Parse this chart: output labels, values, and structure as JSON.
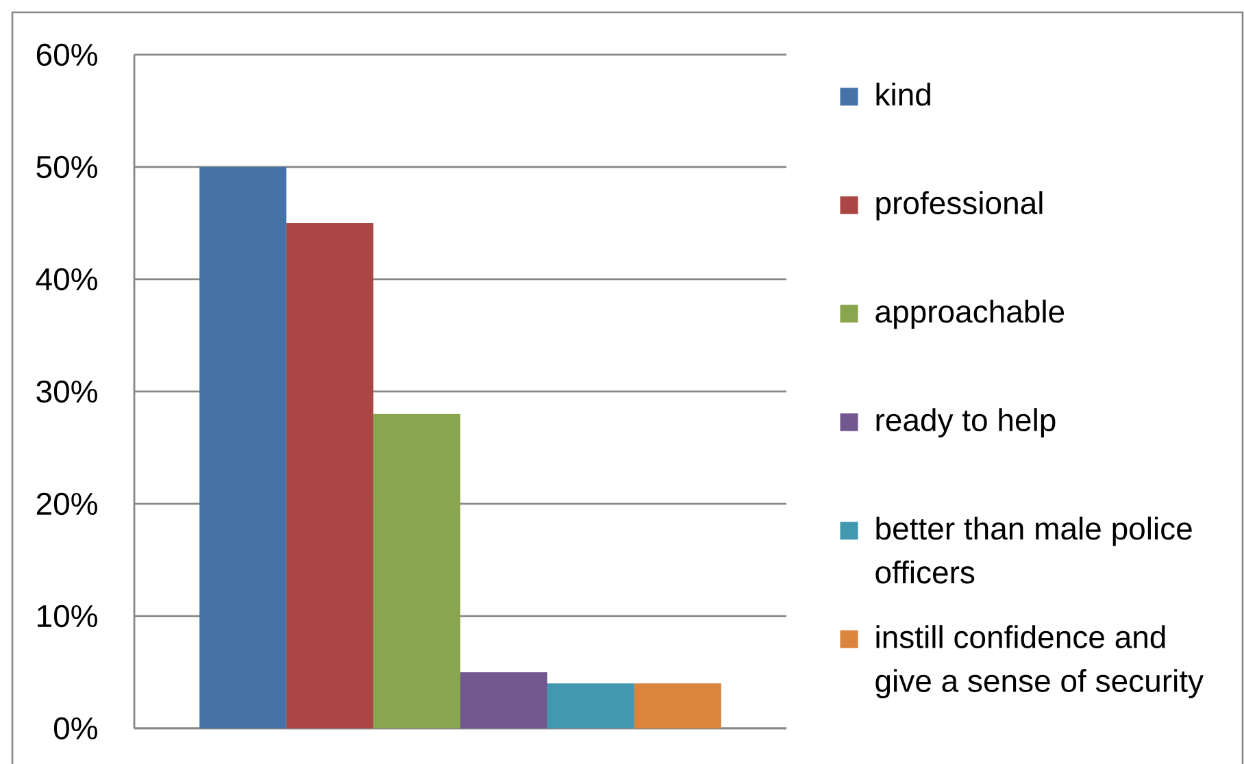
{
  "chart_data": {
    "type": "bar",
    "categories": [
      null
    ],
    "series": [
      {
        "name": "kind",
        "color": "#4572a7",
        "values": [
          50
        ]
      },
      {
        "name": "professional",
        "color": "#aa4643",
        "values": [
          45
        ]
      },
      {
        "name": "approachable",
        "color": "#89a54e",
        "values": [
          28
        ]
      },
      {
        "name": "ready to help",
        "color": "#71588f",
        "values": [
          5
        ]
      },
      {
        "name": "better than male police officers",
        "color": "#4198af",
        "values": [
          4
        ]
      },
      {
        "name": "instill confidence and give a sense of security",
        "color": "#db843d",
        "values": [
          4
        ]
      }
    ],
    "ylim": [
      0,
      60
    ],
    "yticks": [
      {
        "value": 0,
        "label": "0%"
      },
      {
        "value": 10,
        "label": "10%"
      },
      {
        "value": 20,
        "label": "20%"
      },
      {
        "value": 30,
        "label": "30%"
      },
      {
        "value": 40,
        "label": "40%"
      },
      {
        "value": 50,
        "label": "50%"
      },
      {
        "value": 60,
        "label": "60%"
      }
    ],
    "grid": "y",
    "legend": "right"
  }
}
